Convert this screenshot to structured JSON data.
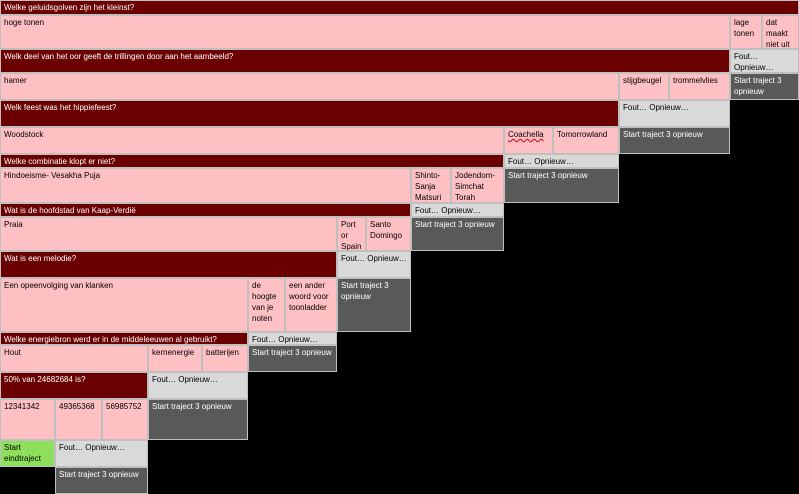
{
  "rows": [
    {
      "question": "Welke geluidsgolven zijn het kleinst?",
      "answer": "hoge tonen",
      "options": [
        "lage tonen",
        "dat maakt niet uit"
      ]
    },
    {
      "question": "Welk deel van het oor geeft de trillingen door aan het aambeeld?",
      "answer": "hamer",
      "options": [
        "stijgbeugel",
        "trommelvlies"
      ]
    },
    {
      "question": "Welk feest was het hippiefeest?",
      "answer": "Woodstock",
      "options": [
        "Coachella",
        "Tomorrowland"
      ]
    },
    {
      "question": "Welke combinatie klopt er niet?",
      "answer": "Hindoeisme- Vesakha Puja",
      "options": [
        "Shinto- Sanja Matsuri",
        "Jodendom- Simchat Torah"
      ]
    },
    {
      "question": "Wat is de hoofdstad van Kaap-Verdië",
      "answer": "Praia",
      "options": [
        "Port or Spain",
        "Santo Domingo"
      ]
    },
    {
      "question": "Wat is een melodie?",
      "answer": "Een opeenvolging van klanken",
      "options": [
        "de hoogte van je noten",
        "een ander woord voor toonladder"
      ]
    },
    {
      "question": "Welke energiebron werd er in de middeleeuwen al gebruikt?",
      "answer": "Hout",
      "options": [
        "kernenergie",
        "batterijen"
      ]
    },
    {
      "question": "50% van 24682684 is?",
      "answer": "12341342",
      "options": [
        "49365368",
        "56985752"
      ]
    }
  ],
  "wrong_label": "Fout… Opnieuw…",
  "restart_label": "Start traject 3 opnieuw",
  "end_label": "Start eindtraject",
  "colors": {
    "question_bg": "#6b0000",
    "answer_bg": "#ffc0c4",
    "wrong_bg": "#d9d9d9",
    "restart_bg": "#595959",
    "end_bg": "#8ee05c"
  }
}
